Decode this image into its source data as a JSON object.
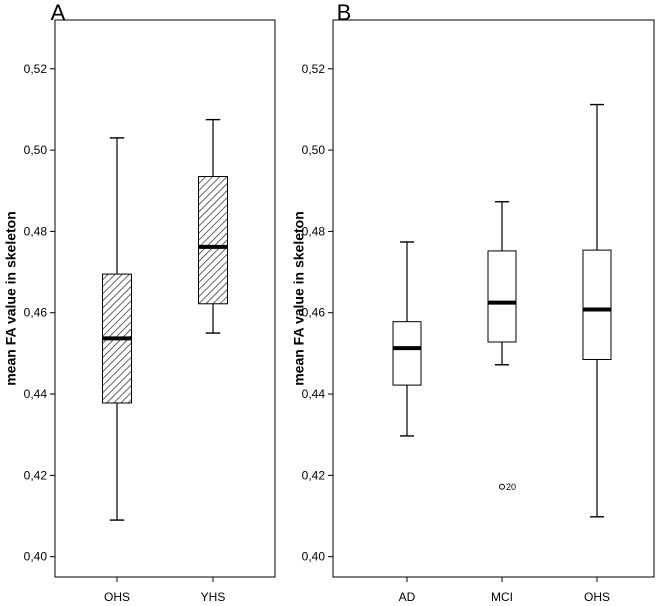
{
  "chart_data": [
    {
      "type": "boxplot",
      "panel_label": "A",
      "ylabel": "mean FA value in skeleton",
      "ylim": [
        0.395,
        0.532
      ],
      "yticks": [
        0.4,
        0.42,
        0.44,
        0.46,
        0.48,
        0.5,
        0.52
      ],
      "ytick_labels": [
        "0,40",
        "0,42",
        "0,44",
        "0,46",
        "0,48",
        "0,50",
        "0,52"
      ],
      "categories": [
        "OHS",
        "YHS"
      ],
      "boxes": [
        {
          "label": "OHS",
          "whisker_low": 0.409,
          "q1": 0.4378,
          "median": 0.4537,
          "q3": 0.4695,
          "whisker_high": 0.503,
          "fill": "hatched",
          "outliers": []
        },
        {
          "label": "YHS",
          "whisker_low": 0.455,
          "q1": 0.4622,
          "median": 0.4762,
          "q3": 0.4935,
          "whisker_high": 0.5075,
          "fill": "hatched",
          "outliers": []
        }
      ],
      "grid": false
    },
    {
      "type": "boxplot",
      "panel_label": "B",
      "ylabel": "mean FA value in skeleton",
      "ylim": [
        0.395,
        0.532
      ],
      "yticks": [
        0.4,
        0.42,
        0.44,
        0.46,
        0.48,
        0.5,
        0.52
      ],
      "ytick_labels": [
        "0,40",
        "0,42",
        "0,44",
        "0,46",
        "0,48",
        "0,50",
        "0,52"
      ],
      "categories": [
        "AD",
        "MCI",
        "OHS"
      ],
      "boxes": [
        {
          "label": "AD",
          "whisker_low": 0.4297,
          "q1": 0.4422,
          "median": 0.4513,
          "q3": 0.4578,
          "whisker_high": 0.4774,
          "fill": "white",
          "outliers": []
        },
        {
          "label": "MCI",
          "whisker_low": 0.4472,
          "q1": 0.4528,
          "median": 0.4625,
          "q3": 0.4752,
          "whisker_high": 0.4873,
          "fill": "white",
          "outliers": [
            {
              "value": 0.4172,
              "label": "20"
            }
          ]
        },
        {
          "label": "OHS",
          "whisker_low": 0.4098,
          "q1": 0.4485,
          "median": 0.4608,
          "q3": 0.4754,
          "whisker_high": 0.5112,
          "fill": "white",
          "outliers": []
        }
      ],
      "grid": false
    }
  ]
}
